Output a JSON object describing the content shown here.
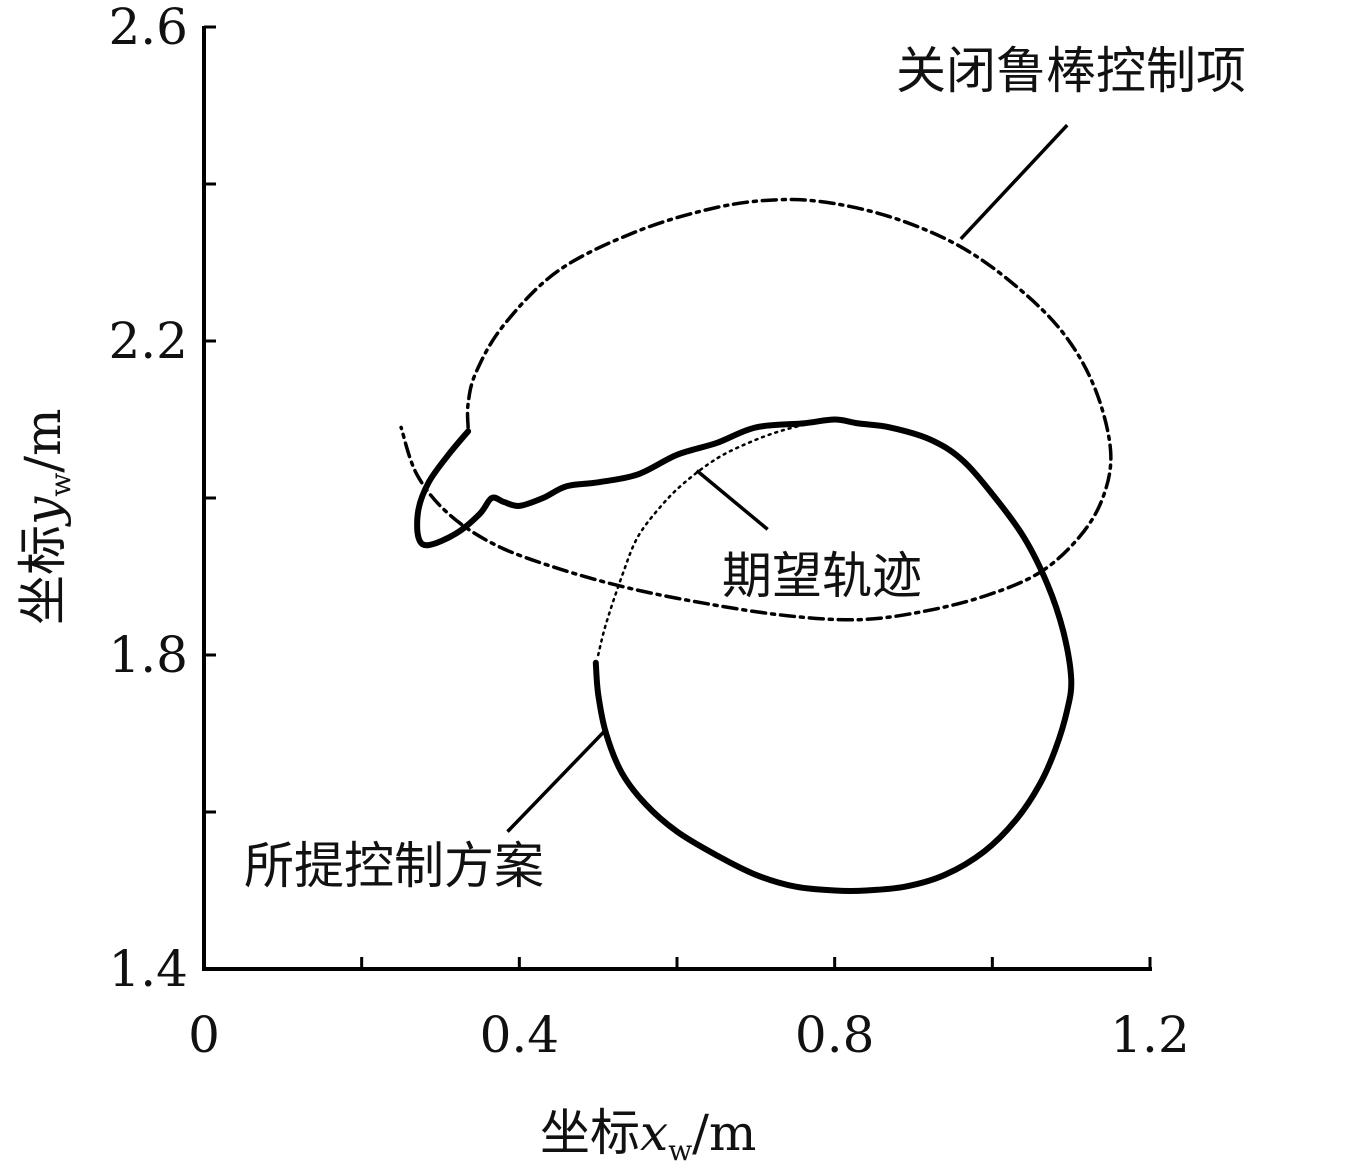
{
  "chart_data": {
    "type": "line",
    "xlabel": {
      "prefix": "坐标",
      "var": "x",
      "sub": "w",
      "unit": "/m"
    },
    "ylabel": {
      "prefix": "坐标",
      "var": "y",
      "sub": "w",
      "unit": "/m"
    },
    "xlim": [
      0,
      1.2
    ],
    "ylim": [
      1.4,
      2.6
    ],
    "x_ticks": [
      0,
      0.2,
      0.4,
      0.6,
      0.8,
      1.0,
      1.2
    ],
    "x_tick_labels": [
      "0",
      "0.4",
      "0.8",
      "1.2"
    ],
    "x_labeled_ticks": [
      0,
      0.4,
      0.8,
      1.2
    ],
    "y_ticks": [
      1.4,
      1.6,
      1.8,
      2.0,
      2.2,
      2.4,
      2.6
    ],
    "y_tick_labels": [
      "1.4",
      "1.8",
      "2.2",
      "2.6"
    ],
    "y_labeled_ticks": [
      1.4,
      1.8,
      2.2,
      2.6
    ],
    "grid": false,
    "series": [
      {
        "name": "期望轨迹",
        "style": "dotted",
        "color": "#000000",
        "x": [
          0.5,
          0.51,
          0.53,
          0.55,
          0.58,
          0.61,
          0.65,
          0.69,
          0.73,
          0.77,
          0.8
        ],
        "y": [
          1.8,
          1.84,
          1.9,
          1.95,
          1.99,
          2.02,
          2.05,
          2.07,
          2.085,
          2.095,
          2.1
        ]
      },
      {
        "name": "关闭鲁棒控制项",
        "style": "dashdot",
        "color": "#000000",
        "x": [
          0.335,
          0.335,
          0.345,
          0.38,
          0.45,
          0.55,
          0.65,
          0.73,
          0.8,
          0.88,
          0.96,
          1.03,
          1.09,
          1.13,
          1.15,
          1.14,
          1.11,
          1.06,
          0.99,
          0.91,
          0.83,
          0.74,
          0.64,
          0.54,
          0.45,
          0.37,
          0.31,
          0.27,
          0.25
        ],
        "y": [
          2.09,
          2.12,
          2.16,
          2.22,
          2.29,
          2.34,
          2.37,
          2.38,
          2.375,
          2.355,
          2.32,
          2.27,
          2.21,
          2.14,
          2.06,
          2.0,
          1.95,
          1.905,
          1.875,
          1.855,
          1.845,
          1.85,
          1.865,
          1.885,
          1.91,
          1.94,
          1.98,
          2.03,
          2.09
        ]
      },
      {
        "name": "所提控制方案",
        "style": "solid",
        "color": "#000000",
        "x": [
          0.335,
          0.31,
          0.285,
          0.272,
          0.272,
          0.285,
          0.32,
          0.35,
          0.365,
          0.38,
          0.4,
          0.43,
          0.46,
          0.5,
          0.55,
          0.6,
          0.65,
          0.7,
          0.76,
          0.8,
          0.83,
          0.87,
          0.92,
          0.96,
          1.0,
          1.04,
          1.07,
          1.09,
          1.1,
          1.095,
          1.08,
          1.06,
          1.03,
          0.99,
          0.94,
          0.89,
          0.84,
          0.8,
          0.75,
          0.7,
          0.65,
          0.6,
          0.56,
          0.53,
          0.51,
          0.5,
          0.497
        ],
        "y": [
          2.085,
          2.055,
          2.02,
          1.985,
          1.95,
          1.94,
          1.955,
          1.98,
          2.0,
          1.995,
          1.99,
          2.0,
          2.015,
          2.02,
          2.03,
          2.055,
          2.07,
          2.09,
          2.095,
          2.1,
          2.095,
          2.09,
          2.075,
          2.05,
          2.005,
          1.95,
          1.89,
          1.83,
          1.77,
          1.73,
          1.68,
          1.635,
          1.59,
          1.55,
          1.52,
          1.505,
          1.5,
          1.5,
          1.505,
          1.52,
          1.545,
          1.575,
          1.61,
          1.65,
          1.7,
          1.75,
          1.79
        ]
      }
    ],
    "annotations": [
      {
        "text": "关闭鲁棒控制项",
        "leader_from": [
          1.095,
          2.475
        ],
        "leader_to": [
          0.96,
          2.33
        ]
      },
      {
        "text": "期望轨迹",
        "leader_from": [
          0.715,
          1.96
        ],
        "leader_to": [
          0.625,
          2.035
        ]
      },
      {
        "text": "所提控制方案",
        "leader_from": [
          0.385,
          1.575
        ],
        "leader_to": [
          0.51,
          1.705
        ]
      }
    ]
  }
}
